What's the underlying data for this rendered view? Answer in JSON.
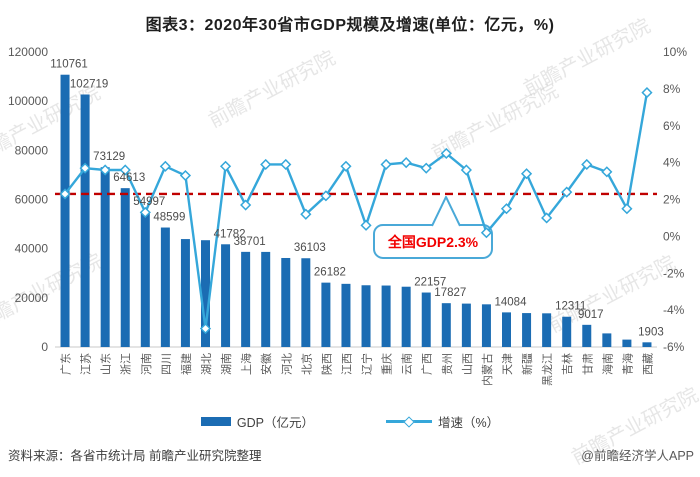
{
  "title": "图表3：2020年30省市GDP规模及增速(单位：亿元，%)",
  "legend": {
    "bar_label": "GDP（亿元）",
    "line_label": "增速（%）"
  },
  "footer": {
    "source": "资料来源：各省市统计局 前瞻产业研究院整理",
    "credit": "@前瞻经济学人APP"
  },
  "watermark_text": "前瞻产业研究院",
  "colors": {
    "bar": "#1b6cb3",
    "line": "#35a7da",
    "reference": "#c00000",
    "annotation_text": "#f20000",
    "annotation_border": "#4aa9d8",
    "axis_text": "#595959",
    "label_text": "#4d4d4d",
    "watermark": "#c0c0c0"
  },
  "chart_data": {
    "type": "bar",
    "title": "图表3：2020年30省市GDP规模及增速(单位：亿元，%)",
    "categories": [
      "广东",
      "江苏",
      "山东",
      "浙江",
      "河南",
      "四川",
      "福建",
      "湖北",
      "湖南",
      "上海",
      "安徽",
      "河北",
      "北京",
      "陕西",
      "江西",
      "辽宁",
      "重庆",
      "云南",
      "广西",
      "贵州",
      "山西",
      "内蒙古",
      "天津",
      "新疆",
      "黑龙江",
      "吉林",
      "甘肃",
      "海南",
      "青海",
      "西藏"
    ],
    "series": [
      {
        "name": "GDP（亿元）",
        "type": "bar",
        "axis": "left",
        "values": [
          110761,
          102719,
          73129,
          64613,
          54997,
          48599,
          43904,
          43443,
          41782,
          38701,
          38681,
          36207,
          36103,
          26182,
          25692,
          25115,
          25003,
          24522,
          22157,
          17827,
          17652,
          17360,
          14084,
          13798,
          13699,
          12311,
          9017,
          5532,
          3006,
          1903
        ]
      },
      {
        "name": "增速（%）",
        "type": "line",
        "axis": "right",
        "values": [
          2.3,
          3.7,
          3.6,
          3.6,
          1.3,
          3.8,
          3.3,
          -5.0,
          3.8,
          1.7,
          3.9,
          3.9,
          1.2,
          2.2,
          3.8,
          0.6,
          3.9,
          4.0,
          3.7,
          4.5,
          3.6,
          0.2,
          1.5,
          3.4,
          1.0,
          2.4,
          3.9,
          3.5,
          1.5,
          7.8
        ]
      }
    ],
    "bar_value_labels": [
      "110761",
      "102719",
      "73129",
      "64613",
      "54997",
      "48599",
      "",
      "",
      "41782",
      "38701",
      "",
      "",
      "36103",
      "26182",
      "",
      "",
      "",
      "",
      "22157",
      "17827",
      "",
      "",
      "14084",
      "",
      "",
      "12311",
      "9017",
      "",
      "",
      "1903"
    ],
    "left_axis": {
      "min": 0,
      "max": 120000,
      "ticks": [
        "0",
        "20000",
        "40000",
        "60000",
        "80000",
        "100000",
        "120000"
      ]
    },
    "right_axis": {
      "min": -6,
      "max": 10,
      "ticks": [
        "-6%",
        "-4%",
        "-2%",
        "0%",
        "2%",
        "4%",
        "6%",
        "8%",
        "10%"
      ]
    },
    "reference_line": {
      "value": 2.3,
      "label": "全国GDP2.3%"
    },
    "legend_position": "bottom",
    "grid": false
  }
}
